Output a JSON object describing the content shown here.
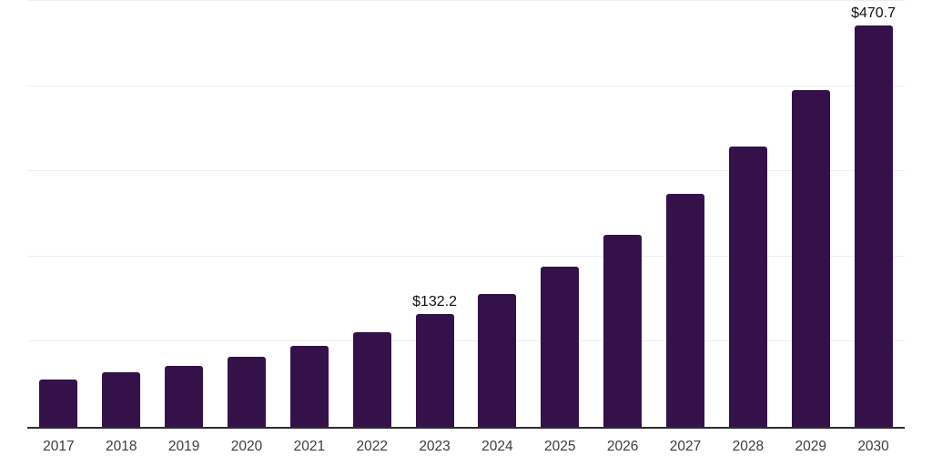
{
  "chart_data": {
    "type": "bar",
    "title": "",
    "xlabel": "",
    "ylabel": "",
    "categories": [
      "2017",
      "2018",
      "2019",
      "2020",
      "2021",
      "2022",
      "2023",
      "2024",
      "2025",
      "2026",
      "2027",
      "2028",
      "2029",
      "2030"
    ],
    "values": [
      55.9,
      63.8,
      71.9,
      82.3,
      95.1,
      110.8,
      132.2,
      155.7,
      187.7,
      225.1,
      273.2,
      329.4,
      395.0,
      470.7
    ],
    "data_labels": [
      null,
      null,
      null,
      null,
      null,
      null,
      "$132.2",
      null,
      null,
      null,
      null,
      null,
      null,
      "$470.7"
    ],
    "ylim": [
      0,
      500
    ],
    "gridline_values": [
      100,
      200,
      300,
      400,
      500
    ],
    "grid": "horizontal-only",
    "legend": "none",
    "colors": {
      "bar": "#341249",
      "gridline": "#efefef",
      "axis_line": "#2e2e2e",
      "tick_label": "#3c3c3c",
      "value_label": "#111111",
      "background": "#ffffff"
    }
  }
}
